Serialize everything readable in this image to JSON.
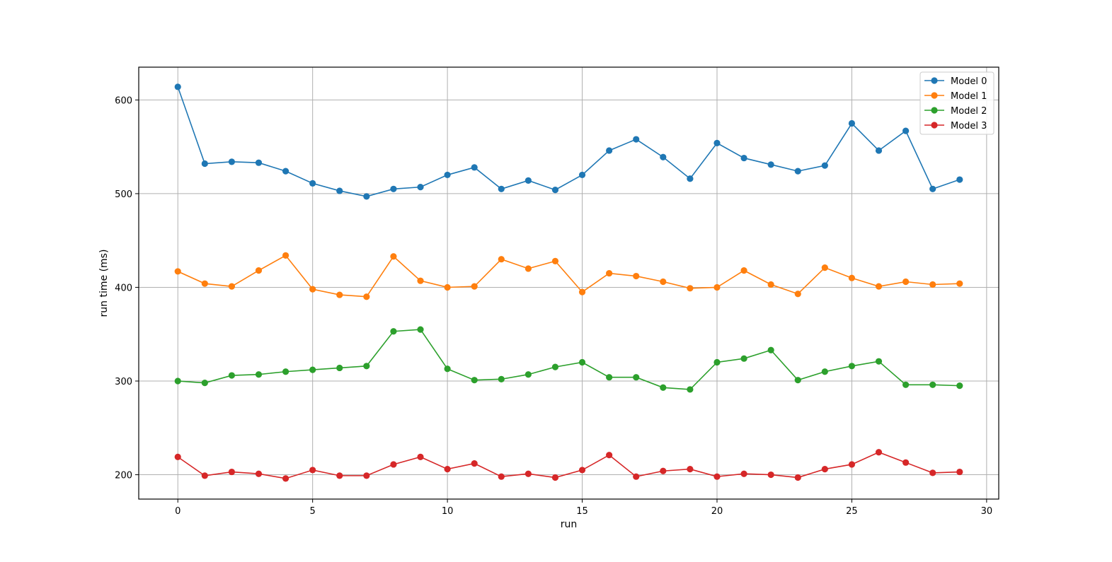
{
  "chart_data": {
    "type": "line",
    "title": "",
    "xlabel": "run",
    "ylabel": "run time (ms)",
    "xlim": [
      -1.45,
      30.45
    ],
    "ylim": [
      174,
      635
    ],
    "xticks": [
      0,
      5,
      10,
      15,
      20,
      25,
      30
    ],
    "yticks": [
      200,
      300,
      400,
      500,
      600
    ],
    "grid": true,
    "legend_position": "top-right",
    "marker": "circle",
    "x": [
      0,
      1,
      2,
      3,
      4,
      5,
      6,
      7,
      8,
      9,
      10,
      11,
      12,
      13,
      14,
      15,
      16,
      17,
      18,
      19,
      20,
      21,
      22,
      23,
      24,
      25,
      26,
      27,
      28,
      29
    ],
    "series": [
      {
        "name": "Model 0",
        "color": "#1f77b4",
        "values": [
          614,
          532,
          534,
          533,
          524,
          511,
          503,
          497,
          505,
          507,
          520,
          528,
          505,
          514,
          504,
          520,
          546,
          558,
          539,
          516,
          554,
          538,
          531,
          524,
          530,
          575,
          546,
          567,
          505,
          515
        ]
      },
      {
        "name": "Model 1",
        "color": "#ff7f0e",
        "values": [
          417,
          404,
          401,
          418,
          434,
          398,
          392,
          390,
          433,
          407,
          400,
          401,
          430,
          420,
          428,
          395,
          415,
          412,
          406,
          399,
          400,
          418,
          403,
          393,
          421,
          410,
          401,
          406,
          403,
          404
        ]
      },
      {
        "name": "Model 2",
        "color": "#2ca02c",
        "values": [
          300,
          298,
          306,
          307,
          310,
          312,
          314,
          316,
          353,
          355,
          313,
          301,
          302,
          307,
          315,
          320,
          304,
          304,
          293,
          291,
          320,
          324,
          333,
          301,
          310,
          316,
          321,
          296,
          296,
          295
        ]
      },
      {
        "name": "Model 3",
        "color": "#d62728",
        "values": [
          219,
          199,
          203,
          201,
          196,
          205,
          199,
          199,
          211,
          219,
          206,
          212,
          198,
          201,
          197,
          205,
          221,
          198,
          204,
          206,
          198,
          201,
          200,
          197,
          206,
          211,
          224,
          213,
          202,
          203
        ]
      }
    ]
  }
}
